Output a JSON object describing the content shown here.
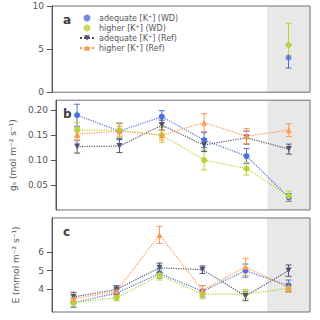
{
  "chart_data": [
    {
      "type": "scatter",
      "title": "a",
      "xlim": [
        0.5,
        6.5
      ],
      "xticks": [],
      "ylim": [
        0,
        10
      ],
      "yticks": [
        0,
        5,
        10
      ],
      "grid": false,
      "tick_labels": "y",
      "legend": "upper left",
      "shaded_x": [
        5.5,
        6.5
      ],
      "series": [
        {
          "name": "adequate [K⁺] (WD)",
          "marker": "circle",
          "x": [
            6
          ],
          "values": [
            4.0
          ],
          "yerr_lo": [
            1.2
          ],
          "yerr_hi": [
            1.5
          ]
        },
        {
          "name": "higher [K⁺] (WD)",
          "marker": "circle",
          "x": [
            6
          ],
          "values": [
            5.5
          ],
          "yerr_lo": [
            1.2
          ],
          "yerr_hi": [
            2.5
          ]
        }
      ]
    },
    {
      "type": "line",
      "title": "b",
      "y_label": "gₛ (mol m⁻² s⁻¹)",
      "x": [
        1,
        2,
        3,
        4,
        5,
        6
      ],
      "xlim": [
        0.5,
        6.5
      ],
      "xticks": [],
      "ylim": [
        0.0,
        0.22
      ],
      "yticks": [
        0.05,
        {
          "value": 0.1,
          "label": "0.10"
        },
        0.15,
        {
          "value": 0.2,
          "label": "0.20"
        }
      ],
      "grid": false,
      "tick_labels": "y",
      "shaded_x": [
        5.5,
        6.5
      ],
      "series": [
        {
          "name": "adequate [K⁺] (WD)",
          "marker": "circle",
          "line_style": "dotted",
          "values": [
            0.19,
            0.158,
            0.187,
            0.14,
            0.108,
            0.025
          ],
          "yerr": [
            0.022,
            0.015,
            0.012,
            0.015,
            0.015,
            0.008
          ]
        },
        {
          "name": "higher [K⁺] (WD)",
          "marker": "circle",
          "line_style": "dotted",
          "values": [
            0.16,
            0.16,
            0.15,
            0.1,
            0.083,
            0.028
          ],
          "yerr": [
            0.015,
            0.015,
            0.015,
            0.02,
            0.013,
            0.01
          ]
        },
        {
          "name": "adequate [K⁺] (Ref)",
          "marker": "triangle_down",
          "line_style": "dotted",
          "values": [
            0.127,
            0.128,
            0.17,
            0.13,
            0.145,
            0.122
          ],
          "yerr": [
            0.013,
            0.013,
            0.01,
            0.013,
            0.013,
            0.01
          ]
        },
        {
          "name": "higher [K⁺] (Ref)",
          "marker": "triangle_up",
          "line_style": "dotted",
          "values": [
            0.152,
            0.158,
            0.15,
            0.175,
            0.148,
            0.16
          ],
          "yerr": [
            0.013,
            0.01,
            0.01,
            0.018,
            0.015,
            0.013
          ]
        }
      ]
    },
    {
      "type": "line",
      "title": "c",
      "y_label": "E (mmol m⁻² s⁻¹)",
      "x": [
        1,
        2,
        3,
        4,
        5,
        6
      ],
      "xlim": [
        0.5,
        6.5
      ],
      "xticks": [],
      "ylim": [
        2.8,
        7.8
      ],
      "yticks": [
        4,
        5,
        6
      ],
      "grid": false,
      "tick_labels": "y",
      "shaded_x": [
        5.5,
        6.5
      ],
      "series": [
        {
          "name": "adequate [K⁺] (WD)",
          "marker": "circle",
          "line_style": "dotted",
          "values": [
            3.3,
            3.8,
            4.85,
            3.9,
            5.0,
            4.2
          ],
          "yerr": [
            0.25,
            0.2,
            0.25,
            0.3,
            0.35,
            0.3
          ]
        },
        {
          "name": "higher [K⁺] (WD)",
          "marker": "circle",
          "line_style": "dotted",
          "values": [
            3.3,
            3.55,
            4.75,
            3.75,
            3.75,
            4.05
          ],
          "yerr": [
            0.2,
            0.15,
            0.25,
            0.25,
            0.25,
            0.2
          ]
        },
        {
          "name": "adequate [K⁺] (Ref)",
          "marker": "triangle_down",
          "line_style": "dotted",
          "values": [
            3.6,
            4.0,
            5.15,
            5.05,
            3.65,
            5.0
          ],
          "yerr": [
            0.25,
            0.2,
            0.25,
            0.2,
            0.25,
            0.3
          ]
        },
        {
          "name": "higher [K⁺] (Ref)",
          "marker": "triangle_up",
          "line_style": "dotted",
          "values": [
            3.5,
            3.9,
            6.9,
            3.95,
            5.2,
            4.1
          ],
          "yerr": [
            0.25,
            0.15,
            0.45,
            0.25,
            0.45,
            0.25
          ]
        }
      ]
    }
  ]
}
